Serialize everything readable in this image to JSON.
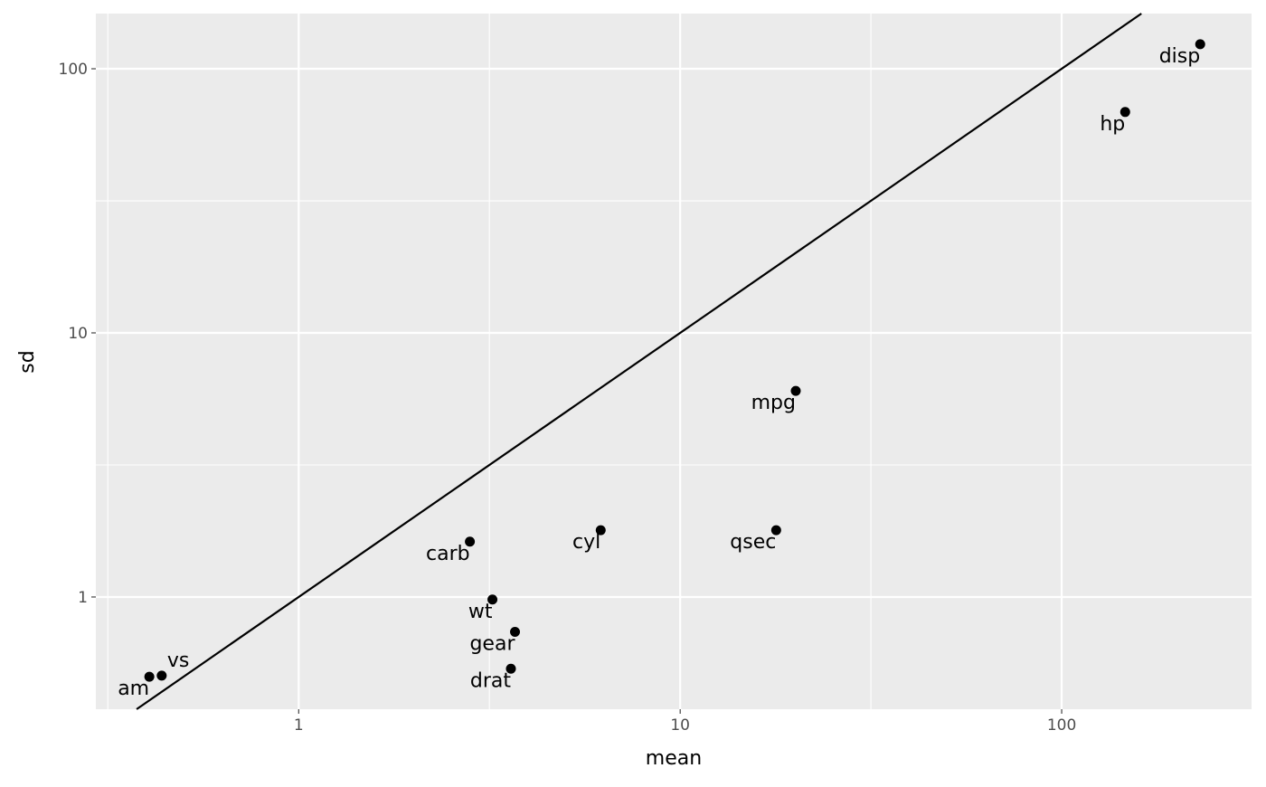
{
  "chart_data": {
    "type": "scatter",
    "xlabel": "mean",
    "ylabel": "sd",
    "xscale": "log10",
    "yscale": "log10",
    "xlim": [
      0.294,
      314.5
    ],
    "ylim": [
      0.376,
      161.8
    ],
    "xticks": [
      {
        "value": 1,
        "label": "1"
      },
      {
        "value": 10,
        "label": "10"
      },
      {
        "value": 100,
        "label": "100"
      }
    ],
    "yticks": [
      {
        "value": 1,
        "label": "1"
      },
      {
        "value": 10,
        "label": "10"
      },
      {
        "value": 100,
        "label": "100"
      }
    ],
    "grid": true,
    "reference_line": {
      "type": "identity",
      "slope": 1,
      "intercept": 0
    },
    "points": [
      {
        "label": "mpg",
        "x": 20.09,
        "y": 6.03
      },
      {
        "label": "cyl",
        "x": 6.19,
        "y": 1.79
      },
      {
        "label": "disp",
        "x": 230.7,
        "y": 123.9
      },
      {
        "label": "hp",
        "x": 146.7,
        "y": 68.6
      },
      {
        "label": "drat",
        "x": 3.6,
        "y": 0.535
      },
      {
        "label": "wt",
        "x": 3.22,
        "y": 0.978
      },
      {
        "label": "qsec",
        "x": 17.85,
        "y": 1.79
      },
      {
        "label": "vs",
        "x": 0.4375,
        "y": 0.504
      },
      {
        "label": "am",
        "x": 0.406,
        "y": 0.499
      },
      {
        "label": "gear",
        "x": 3.69,
        "y": 0.738
      },
      {
        "label": "carb",
        "x": 2.81,
        "y": 1.62
      }
    ],
    "colors": {
      "panel": "#EBEBEB",
      "grid": "#FFFFFF",
      "point": "#000000",
      "line": "#000000",
      "tick_text": "#4D4D4D"
    }
  }
}
